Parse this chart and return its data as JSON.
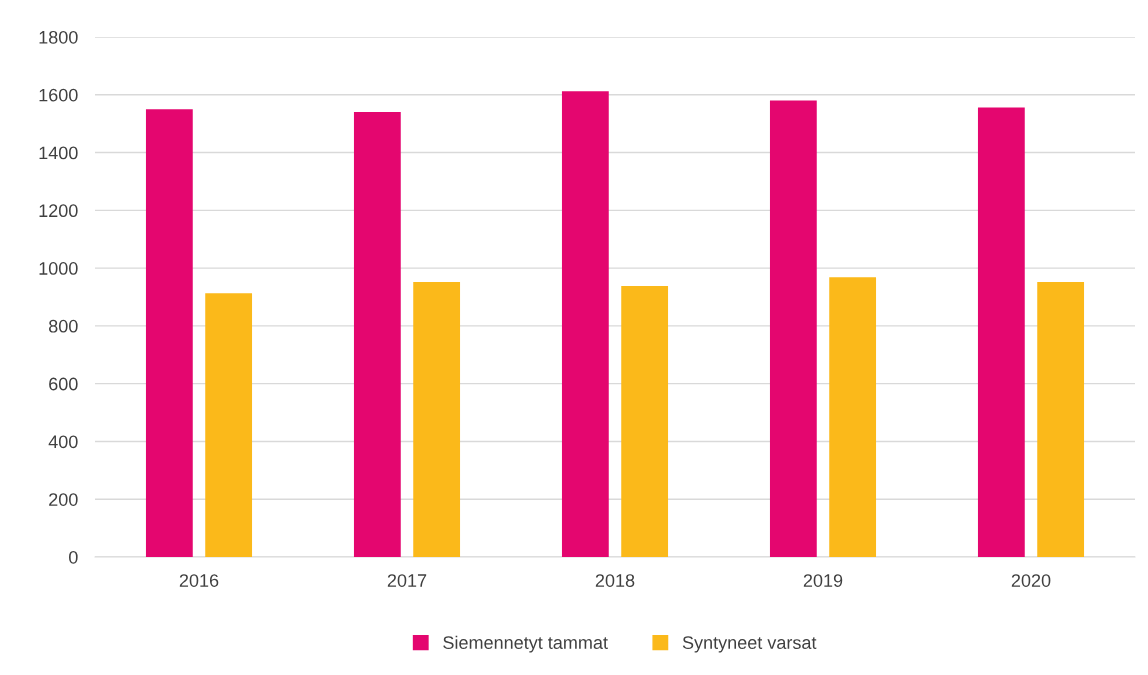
{
  "chart_data": {
    "type": "bar",
    "categories": [
      "2016",
      "2017",
      "2018",
      "2019",
      "2020"
    ],
    "series": [
      {
        "name": "Siemennetyt tammat",
        "color": "#e4066f",
        "values": [
          1550,
          1540,
          1612,
          1580,
          1556
        ]
      },
      {
        "name": "Syntyneet varsat",
        "color": "#fbb91a",
        "values": [
          913,
          952,
          938,
          968,
          952
        ]
      }
    ],
    "ylim": [
      0,
      1800
    ],
    "yticks": [
      0,
      200,
      400,
      600,
      800,
      1000,
      1200,
      1400,
      1600,
      1800
    ],
    "grid": "y",
    "legend": "bottom"
  }
}
